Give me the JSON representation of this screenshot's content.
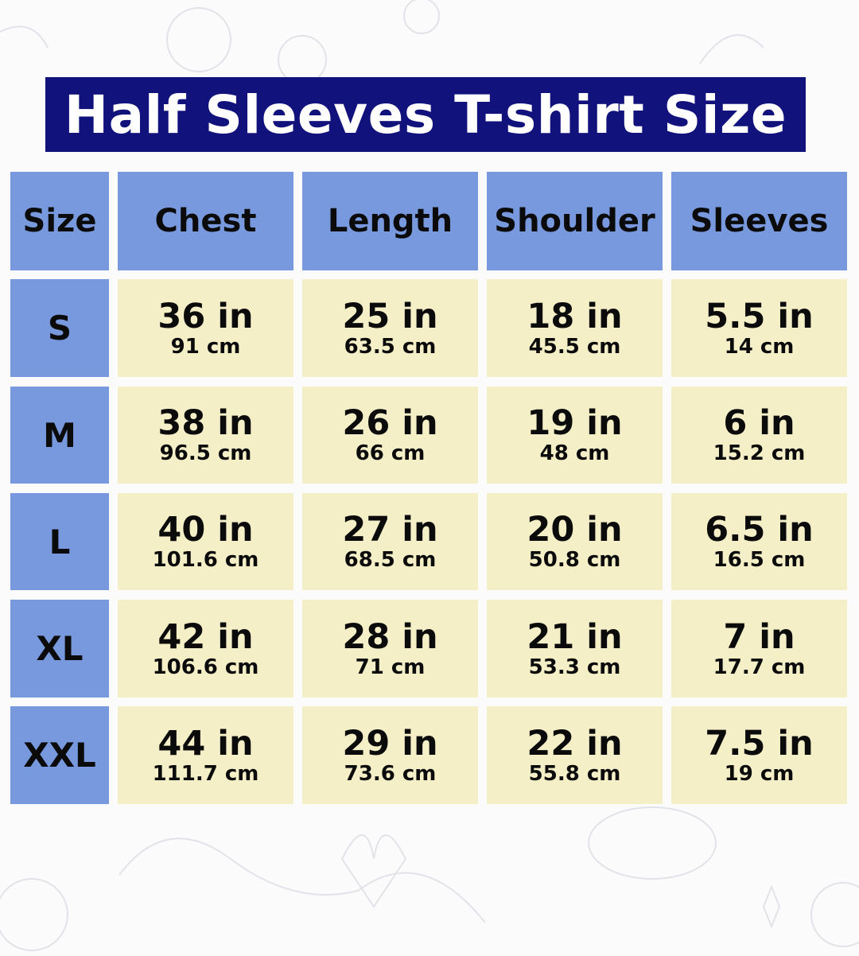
{
  "title": "Half Sleeves T-shirt Size",
  "colors": {
    "title_bg": "#12127c",
    "header_bg": "#7899de",
    "cell_bg": "#f5efc8"
  },
  "columns": [
    "Size",
    "Chest",
    "Length",
    "Shoulder",
    "Sleeves"
  ],
  "rows": [
    {
      "size": "S",
      "values": [
        [
          "36 in",
          "91 cm"
        ],
        [
          "25 in",
          "63.5 cm"
        ],
        [
          "18 in",
          "45.5 cm"
        ],
        [
          "5.5 in",
          "14 cm"
        ]
      ]
    },
    {
      "size": "M",
      "values": [
        [
          "38 in",
          "96.5 cm"
        ],
        [
          "26 in",
          "66 cm"
        ],
        [
          "19 in",
          "48 cm"
        ],
        [
          "6 in",
          "15.2 cm"
        ]
      ]
    },
    {
      "size": "L",
      "values": [
        [
          "40 in",
          "101.6 cm"
        ],
        [
          "27 in",
          "68.5 cm"
        ],
        [
          "20 in",
          "50.8 cm"
        ],
        [
          "6.5 in",
          "16.5 cm"
        ]
      ]
    },
    {
      "size": "XL",
      "values": [
        [
          "42 in",
          "106.6 cm"
        ],
        [
          "28 in",
          "71 cm"
        ],
        [
          "21 in",
          "53.3 cm"
        ],
        [
          "7 in",
          "17.7 cm"
        ]
      ]
    },
    {
      "size": "XXL",
      "values": [
        [
          "44 in",
          "111.7 cm"
        ],
        [
          "29 in",
          "73.6 cm"
        ],
        [
          "22 in",
          "55.8 cm"
        ],
        [
          "7.5 in",
          "19 cm"
        ]
      ]
    }
  ]
}
